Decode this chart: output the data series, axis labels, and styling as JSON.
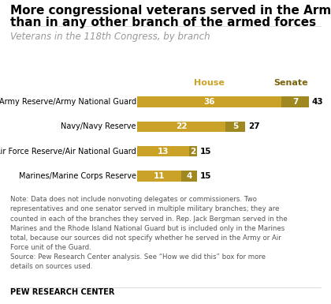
{
  "title_line1": "More congressional veterans served in the Army",
  "title_line2": "than in any other branch of the armed forces",
  "subtitle": "Veterans in the 118th Congress, by branch",
  "categories": [
    "Army/Army Reserve/Army National Guard",
    "Navy/Navy Reserve",
    "Air Force/Air Force Reserve/Air National Guard",
    "Marines/Marine Corps Reserve"
  ],
  "house_values": [
    36,
    22,
    13,
    11
  ],
  "senate_values": [
    7,
    5,
    2,
    4
  ],
  "totals": [
    43,
    27,
    15,
    15
  ],
  "house_color": "#C9A227",
  "senate_color": "#A08820",
  "bar_height": 0.42,
  "note_text": "Note: Data does not include nonvoting delegates or commissioners. Two\nrepresentatives and one senator served in multiple military branches; they are\ncounted in each of the branches they served in. Rep. Jack Bergman served in the\nMarines and the Rhode Island National Guard but is included only in the Marines\ntotal, because our sources did not specify whether he served in the Army or Air\nForce unit of the Guard.\nSource: Pew Research Center analysis. See “How we did this” box for more\ndetails on sources used.",
  "footer": "PEW RESEARCH CENTER",
  "title_fontsize": 11.0,
  "subtitle_fontsize": 8.5,
  "bar_label_fontsize": 7.5,
  "category_fontsize": 7.0,
  "legend_fontsize": 8.0,
  "note_fontsize": 6.2,
  "footer_fontsize": 7.0,
  "xlim": [
    0,
    46
  ],
  "background_color": "#ffffff"
}
